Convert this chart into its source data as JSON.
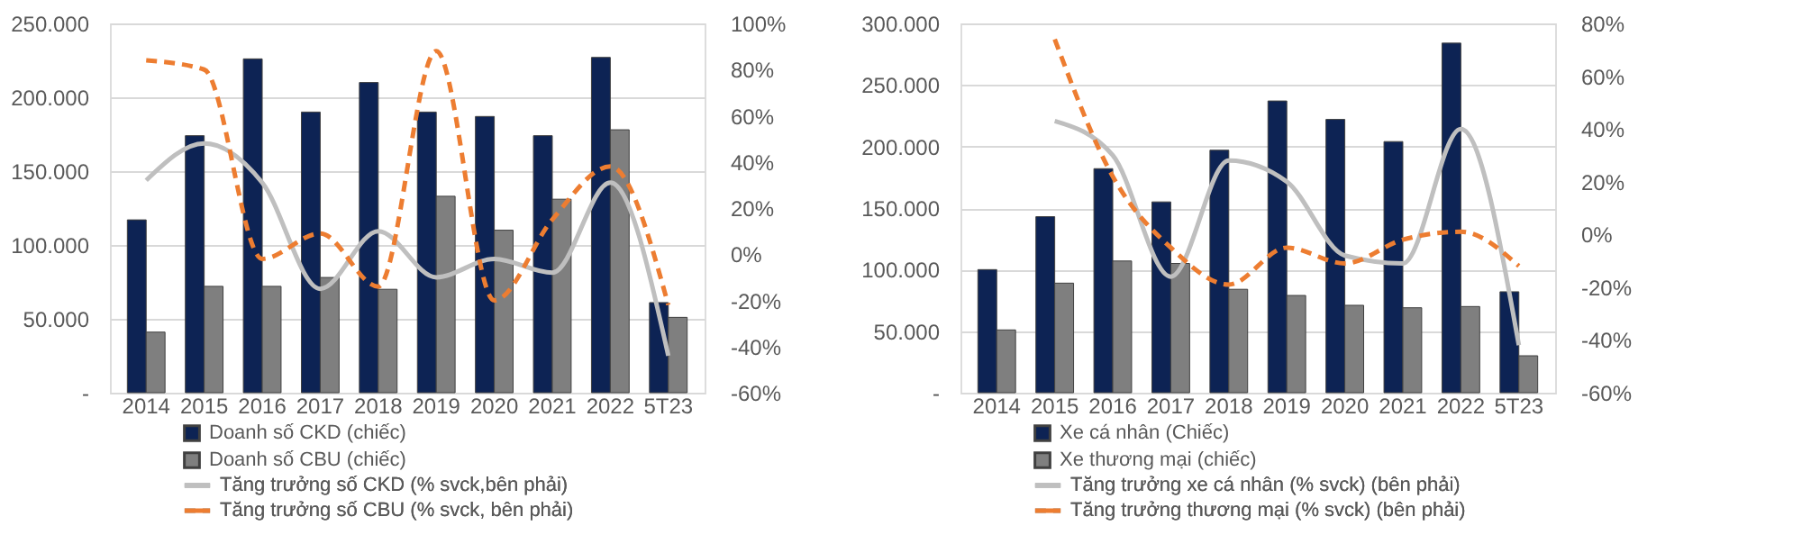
{
  "chart_data": [
    {
      "type": "bar",
      "categories": [
        "2014",
        "2015",
        "2016",
        "2017",
        "2018",
        "2019",
        "2020",
        "2021",
        "2022",
        "5T23"
      ],
      "series": [
        {
          "name": "Doanh số CKD (chiếc)",
          "color": "#0d2354",
          "values": [
            117000,
            174000,
            226000,
            190000,
            210000,
            190000,
            187000,
            174000,
            227000,
            61000
          ]
        },
        {
          "name": "Doanh số CBU (chiếc)",
          "color": "#7f7f7f",
          "values": [
            41000,
            72000,
            72000,
            78000,
            70000,
            133000,
            110000,
            131000,
            178000,
            51000
          ]
        },
        {
          "name": "Tăng trưởng số CKD (% svck,bên phải)",
          "type": "line",
          "axis": "y2",
          "line_style": "solid",
          "color": "#bfbfbf",
          "values": [
            32,
            48,
            31,
            -15,
            10,
            -10,
            -2,
            -8,
            31,
            -44
          ]
        },
        {
          "name": "Tăng trưởng số CBU (% svck, bên phải)",
          "type": "line",
          "axis": "y2",
          "line_style": "dashed",
          "color": "#ed7d31",
          "values": [
            84,
            80,
            -2,
            9,
            -14,
            88,
            -20,
            15,
            38,
            -22
          ]
        }
      ],
      "ylim": [
        0,
        250000
      ],
      "yticks": [
        {
          "value": 0,
          "label": "-"
        },
        {
          "value": 50000,
          "label": "50.000"
        },
        {
          "value": 100000,
          "label": "100.000"
        },
        {
          "value": 150000,
          "label": "150.000"
        },
        {
          "value": 200000,
          "label": "200.000"
        },
        {
          "value": 250000,
          "label": "250.000"
        }
      ],
      "y2lim": [
        -60,
        100
      ],
      "y2ticks": [
        {
          "value": -60,
          "label": "-60%"
        },
        {
          "value": -40,
          "label": "-40%"
        },
        {
          "value": -20,
          "label": "-20%"
        },
        {
          "value": 0,
          "label": "0%"
        },
        {
          "value": 20,
          "label": "20%"
        },
        {
          "value": 40,
          "label": "40%"
        },
        {
          "value": 60,
          "label": "60%"
        },
        {
          "value": 80,
          "label": "80%"
        },
        {
          "value": 100,
          "label": "100%"
        }
      ],
      "grid": "y",
      "legend": "bottom"
    },
    {
      "type": "bar",
      "categories": [
        "2014",
        "2015",
        "2016",
        "2017",
        "2018",
        "2019",
        "2020",
        "2021",
        "2022",
        "5T23"
      ],
      "series": [
        {
          "name": "Xe cá nhân (Chiếc)",
          "color": "#0d2354",
          "values": [
            100000,
            143000,
            182000,
            155000,
            197000,
            237000,
            222000,
            204000,
            284000,
            82000
          ]
        },
        {
          "name": "Xe thương mại (chiếc)",
          "color": "#7f7f7f",
          "values": [
            51000,
            89000,
            107000,
            105000,
            84000,
            79000,
            71000,
            69000,
            70000,
            30000
          ]
        },
        {
          "name": "Tăng trưởng xe cá nhân (% svck) (bên phải)",
          "type": "line",
          "axis": "y2",
          "line_style": "solid",
          "color": "#bfbfbf",
          "values": [
            null,
            43,
            30,
            -16,
            28,
            20,
            -8,
            -11,
            40,
            -42
          ]
        },
        {
          "name": "Tăng trưởng thương mại (% svck) (bên phải)",
          "type": "line",
          "axis": "y2",
          "line_style": "dashed",
          "color": "#ed7d31",
          "values": [
            null,
            74,
            22,
            -5,
            -19,
            -5,
            -11,
            -2,
            1,
            -12
          ]
        }
      ],
      "ylim": [
        0,
        300000
      ],
      "yticks": [
        {
          "value": 0,
          "label": "-"
        },
        {
          "value": 50000,
          "label": "50.000"
        },
        {
          "value": 100000,
          "label": "100.000"
        },
        {
          "value": 150000,
          "label": "150.000"
        },
        {
          "value": 200000,
          "label": "200.000"
        },
        {
          "value": 250000,
          "label": "250.000"
        },
        {
          "value": 300000,
          "label": "300.000"
        }
      ],
      "y2lim": [
        -60,
        80
      ],
      "y2ticks": [
        {
          "value": -60,
          "label": "-60%"
        },
        {
          "value": -40,
          "label": "-40%"
        },
        {
          "value": -20,
          "label": "-20%"
        },
        {
          "value": 0,
          "label": "0%"
        },
        {
          "value": 20,
          "label": "20%"
        },
        {
          "value": 40,
          "label": "40%"
        },
        {
          "value": 60,
          "label": "60%"
        },
        {
          "value": 80,
          "label": "80%"
        }
      ],
      "grid": "y",
      "legend": "bottom"
    }
  ]
}
